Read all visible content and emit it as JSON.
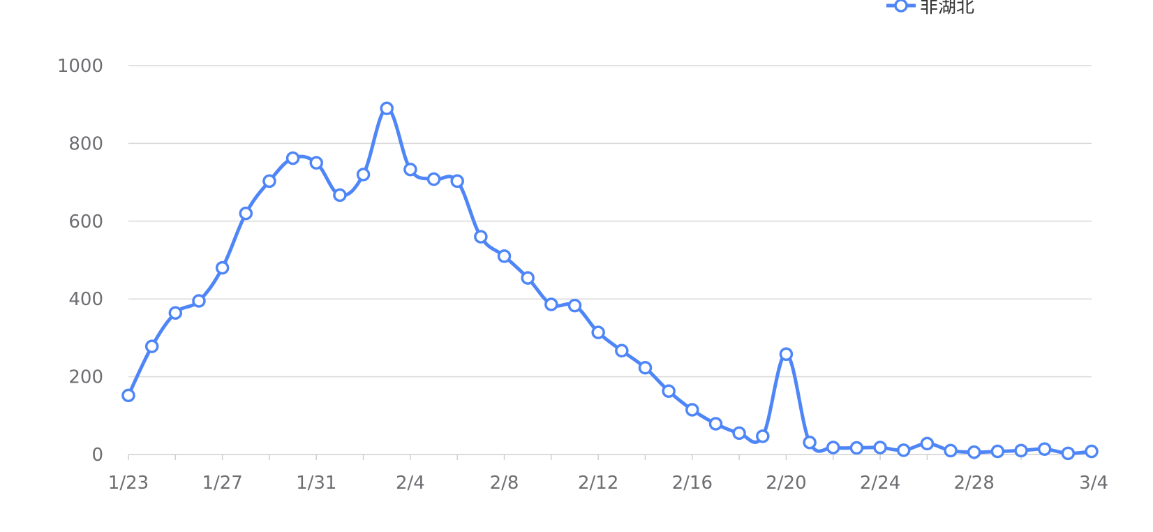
{
  "chart_data": {
    "type": "line",
    "title": "",
    "xlabel": "",
    "ylabel": "",
    "x": [
      "1/23",
      "1/24",
      "1/25",
      "1/26",
      "1/27",
      "1/28",
      "1/29",
      "1/30",
      "1/31",
      "2/1",
      "2/2",
      "2/3",
      "2/4",
      "2/5",
      "2/6",
      "2/7",
      "2/8",
      "2/9",
      "2/10",
      "2/11",
      "2/12",
      "2/13",
      "2/14",
      "2/15",
      "2/16",
      "2/17",
      "2/18",
      "2/19",
      "2/20",
      "2/21",
      "2/22",
      "2/23",
      "2/24",
      "2/25",
      "2/26",
      "2/27",
      "2/28",
      "2/29",
      "3/1",
      "3/2",
      "3/3",
      "3/4"
    ],
    "x_tick_labels": [
      "1/23",
      "1/27",
      "1/31",
      "2/4",
      "2/8",
      "2/12",
      "2/16",
      "2/20",
      "2/24",
      "2/28",
      "3/4"
    ],
    "y_tick_labels": [
      "0",
      "200",
      "400",
      "600",
      "800",
      "1000"
    ],
    "ylim": [
      0,
      1000
    ],
    "grid": true,
    "legend_position": "top-right",
    "series": [
      {
        "name": "非湖北",
        "color": "#4f86f7",
        "values": [
          152,
          278,
          364,
          395,
          480,
          620,
          703,
          762,
          750,
          667,
          720,
          890,
          733,
          708,
          703,
          560,
          510,
          454,
          386,
          383,
          314,
          267,
          223,
          163,
          115,
          79,
          55,
          47,
          258,
          31,
          18,
          17,
          18,
          11,
          28,
          10,
          6,
          8,
          10,
          14,
          3,
          8
        ]
      }
    ]
  }
}
